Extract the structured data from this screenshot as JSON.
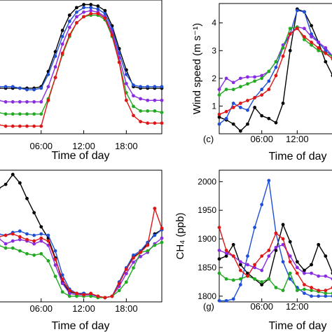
{
  "chart_data": [
    {
      "type": "line",
      "id": "top-left",
      "xlabel": "Time of day",
      "ylabel": "",
      "panel_label": "",
      "x_ticks": [
        "06:00",
        "12:00",
        "18:00"
      ],
      "y_ticks": [],
      "x": [
        0,
        1,
        2,
        3,
        4,
        5,
        6,
        7,
        8,
        9,
        10,
        11,
        12,
        13,
        14,
        15,
        16,
        17,
        18,
        19,
        20,
        21,
        22,
        23
      ],
      "series": [
        {
          "color": "#000000",
          "values": [
            7.5,
            7.5,
            7.5,
            7.5,
            7.5,
            7.5,
            7.6,
            8.6,
            9.9,
            11.3,
            12.3,
            12.8,
            13.0,
            13.0,
            12.9,
            12.6,
            11.6,
            10.1,
            8.7,
            7.6,
            7.5,
            7.5,
            7.5,
            7.5
          ]
        },
        {
          "color": "#1f4fd6",
          "values": [
            7.6,
            7.6,
            7.6,
            7.5,
            7.4,
            7.4,
            7.5,
            8.4,
            9.6,
            10.9,
            11.9,
            12.5,
            12.8,
            12.8,
            12.7,
            12.4,
            11.4,
            9.8,
            8.4,
            7.7,
            7.6,
            7.6,
            7.6,
            7.6
          ]
        },
        {
          "color": "#8a2be2",
          "values": [
            6.7,
            6.6,
            6.6,
            6.6,
            6.6,
            6.6,
            6.6,
            7.6,
            8.9,
            10.4,
            11.5,
            12.2,
            12.5,
            12.6,
            12.5,
            12.2,
            11.2,
            9.5,
            7.8,
            7.0,
            6.8,
            6.7,
            6.7,
            6.7
          ]
        },
        {
          "color": "#22aa22",
          "values": [
            5.9,
            5.8,
            5.8,
            5.8,
            5.8,
            5.8,
            5.8,
            6.8,
            8.2,
            9.7,
            10.9,
            11.8,
            12.2,
            12.3,
            12.3,
            12.0,
            10.9,
            9.2,
            7.2,
            6.3,
            6.0,
            6.0,
            6.0,
            5.9
          ]
        },
        {
          "color": "#e01515",
          "values": [
            5.1,
            5.0,
            5.0,
            5.0,
            5.0,
            5.0,
            5.0,
            6.7,
            8.2,
            9.8,
            11.0,
            11.8,
            12.2,
            12.4,
            12.4,
            12.1,
            11.0,
            9.2,
            6.7,
            5.7,
            5.3,
            5.2,
            5.2,
            5.2
          ]
        }
      ]
    },
    {
      "type": "line",
      "id": "top-right",
      "xlabel": "Time of day",
      "ylabel": "Wind speed (m s⁻¹)",
      "panel_label": "(c)",
      "x_ticks": [
        "06:00",
        "12:00"
      ],
      "y_ticks": [
        "1",
        "2",
        "3",
        "4"
      ],
      "ylim": [
        0,
        4.7
      ],
      "x": [
        0,
        1,
        2,
        3,
        4,
        5,
        6,
        7,
        8,
        9,
        10,
        11,
        12,
        13,
        14,
        15,
        16
      ],
      "series": [
        {
          "color": "#000000",
          "values": [
            0.6,
            0.5,
            0.35,
            0.1,
            0.35,
            0.95,
            0.65,
            0.55,
            0.4,
            1.1,
            3.0,
            4.5,
            4.4,
            3.9,
            3.3,
            2.6,
            2.1
          ]
        },
        {
          "color": "#1f4fd6",
          "values": [
            0.35,
            0.55,
            1.1,
            0.95,
            0.85,
            1.3,
            1.6,
            1.9,
            2.4,
            3.1,
            3.6,
            4.45,
            4.4,
            3.6,
            3.3,
            3.0,
            2.8
          ]
        },
        {
          "color": "#8a2be2",
          "values": [
            1.6,
            2.0,
            1.85,
            2.0,
            2.05,
            2.05,
            2.1,
            2.25,
            2.6,
            3.2,
            3.6,
            3.85,
            3.8,
            3.5,
            3.3,
            3.1,
            2.8
          ]
        },
        {
          "color": "#22aa22",
          "values": [
            1.4,
            1.6,
            1.6,
            1.7,
            1.8,
            1.9,
            2.0,
            2.25,
            2.6,
            3.1,
            3.8,
            3.85,
            3.4,
            3.2,
            3.0,
            2.9,
            2.8
          ]
        },
        {
          "color": "#e01515",
          "values": [
            0.7,
            0.8,
            0.95,
            1.1,
            1.2,
            1.3,
            1.4,
            1.6,
            2.1,
            2.8,
            3.6,
            3.8,
            3.5,
            3.3,
            3.1,
            2.9,
            2.7
          ]
        }
      ]
    },
    {
      "type": "line",
      "id": "bottom-left",
      "xlabel": "Time of day",
      "ylabel": "",
      "panel_label": "",
      "x_ticks": [
        "06:00",
        "12:00",
        "18:00"
      ],
      "y_ticks": [],
      "x": [
        0,
        1,
        2,
        3,
        4,
        5,
        6,
        7,
        8,
        9,
        10,
        11,
        12,
        13,
        14,
        15,
        16,
        17,
        18,
        19,
        20,
        21,
        22,
        23
      ],
      "series": [
        {
          "color": "#000000",
          "values": [
            9.0,
            9.3,
            10.0,
            9.4,
            8.3,
            7.3,
            6.3,
            5.5,
            4.1,
            2.4,
            1.7,
            1.6,
            1.6,
            1.5,
            1.4,
            1.3,
            1.4,
            2.4,
            3.4,
            4.2,
            4.5,
            5.1,
            5.8,
            6.1
          ]
        },
        {
          "color": "#1f4fd6",
          "values": [
            5.8,
            5.7,
            5.9,
            6.0,
            5.8,
            5.7,
            5.8,
            5.7,
            4.6,
            2.9,
            1.9,
            1.6,
            1.6,
            1.5,
            1.4,
            1.3,
            1.4,
            2.4,
            3.4,
            4.3,
            4.6,
            5.2,
            5.7,
            6.1
          ]
        },
        {
          "color": "#8a2be2",
          "values": [
            5.5,
            5.1,
            5.3,
            5.4,
            5.3,
            5.1,
            5.3,
            5.0,
            3.6,
            2.3,
            1.6,
            1.5,
            1.5,
            1.5,
            1.4,
            1.3,
            1.4,
            2.1,
            3.0,
            3.8,
            4.2,
            4.5,
            5.1,
            5.5
          ]
        },
        {
          "color": "#22aa22",
          "values": [
            5.0,
            4.8,
            4.8,
            4.6,
            4.4,
            4.3,
            4.4,
            3.9,
            2.8,
            1.7,
            1.4,
            1.4,
            1.4,
            1.4,
            1.3,
            1.3,
            1.4,
            1.8,
            2.4,
            3.4,
            4.5,
            4.6,
            5.0,
            5.2
          ]
        },
        {
          "color": "#e01515",
          "values": [
            5.6,
            5.7,
            5.8,
            5.6,
            5.4,
            5.3,
            5.5,
            5.3,
            4.0,
            2.6,
            1.8,
            1.6,
            1.5,
            1.6,
            1.4,
            1.3,
            1.4,
            2.3,
            3.3,
            4.1,
            4.5,
            5.0,
            7.6,
            6.2
          ]
        }
      ]
    },
    {
      "type": "line",
      "id": "bottom-right",
      "xlabel": "Time of day",
      "ylabel": "CH₄ (ppb)",
      "panel_label": "(g)",
      "x_ticks": [
        "06:00",
        "12:00"
      ],
      "y_ticks": [
        "1800",
        "1850",
        "1900",
        "1950",
        "2000"
      ],
      "ylim": [
        1790,
        2020
      ],
      "x": [
        0,
        1,
        2,
        3,
        4,
        5,
        6,
        7,
        8,
        9,
        10,
        11,
        12,
        13,
        14,
        15,
        16
      ],
      "series": [
        {
          "color": "#000000",
          "values": [
            1865,
            1870,
            1890,
            1855,
            1840,
            1830,
            1820,
            1830,
            1880,
            1925,
            1895,
            1860,
            1845,
            1855,
            1890,
            1870,
            1840
          ]
        },
        {
          "color": "#1f4fd6",
          "values": [
            1792,
            1792,
            1795,
            1820,
            1870,
            1920,
            1960,
            2002,
            1910,
            1860,
            1830,
            1815,
            1805,
            1800,
            1800,
            1800,
            1800
          ]
        },
        {
          "color": "#8a2be2",
          "values": [
            1880,
            1875,
            1870,
            1860,
            1855,
            1850,
            1845,
            1870,
            1885,
            1890,
            1870,
            1850,
            1840,
            1840,
            1835,
            1835,
            1830
          ]
        },
        {
          "color": "#22aa22",
          "values": [
            1840,
            1830,
            1828,
            1830,
            1835,
            1830,
            1825,
            1830,
            1815,
            1810,
            1840,
            1810,
            1812,
            1810,
            1808,
            1805,
            1805
          ]
        },
        {
          "color": "#e01515",
          "values": [
            1920,
            1880,
            1870,
            1845,
            1835,
            1855,
            1870,
            1880,
            1910,
            1900,
            1860,
            1840,
            1820,
            1815,
            1810,
            1810,
            1815
          ]
        }
      ]
    }
  ]
}
